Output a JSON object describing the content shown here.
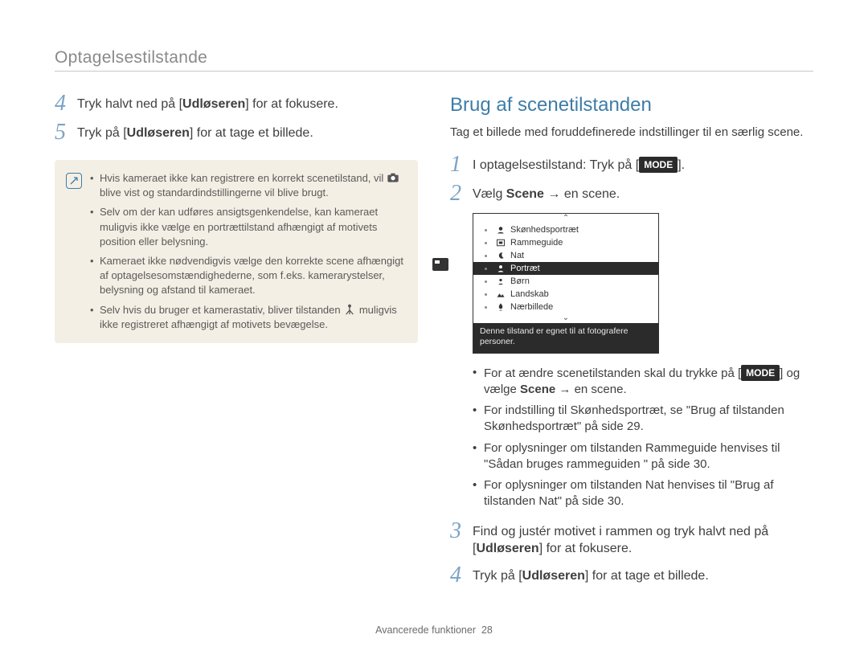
{
  "header": {
    "title": "Optagelsestilstande"
  },
  "left": {
    "step4": {
      "pre": "Tryk halvt ned på [",
      "bold": "Udløseren",
      "post": "] for at fokusere."
    },
    "step5": {
      "pre": "Tryk på [",
      "bold": "Udløseren",
      "post": "] for at tage et billede."
    },
    "notes": [
      {
        "t1": "Hvis kameraet ikke kan registrere en korrekt scenetilstand, vil ",
        "t2": " blive vist og standardindstillingerne vil blive brugt."
      },
      {
        "t1": "Selv om der kan udføres ansigtsgenkendelse, kan kameraet muligvis ikke vælge en portrættilstand afhængigt af motivets position eller belysning."
      },
      {
        "t1": "Kameraet ikke nødvendigvis vælge den korrekte scene afhængigt af optagelsesomstændighederne, som f.eks. kamerarystelser, belysning og afstand til kameraet."
      },
      {
        "t1": "Selv hvis du bruger et kamerastativ, bliver tilstanden ",
        "t2": " muligvis ikke registreret afhængigt af motivets bevægelse."
      }
    ]
  },
  "right": {
    "heading": "Brug af scenetilstanden",
    "intro": "Tag et billede med foruddefinerede indstillinger til en særlig scene.",
    "step1": {
      "pre": "I optagelsestilstand: Tryk på [",
      "mode": "MODE",
      "post": "]."
    },
    "step2": {
      "pre": "Vælg ",
      "bold": "Scene",
      "post": " → en scene."
    },
    "scenes": {
      "items": [
        "Skønhedsportræt",
        "Rammeguide",
        "Nat",
        "Portræt",
        "Børn",
        "Landskab",
        "Nærbillede"
      ],
      "selected_index": 3,
      "footer": "Denne tilstand er egnet til at fotografere personer."
    },
    "bullets": [
      {
        "pre": "For at ændre scenetilstanden skal du trykke på [",
        "mode": "MODE",
        "mid": "] og vælge ",
        "bold": "Scene",
        "post": " → en scene."
      },
      {
        "text": "For indstilling til Skønhedsportræt, se \"Brug af tilstanden Skønhedsportræt\" på side 29."
      },
      {
        "text": "For oplysninger om tilstanden Rammeguide henvises til \"Sådan bruges rammeguiden \" på side 30."
      },
      {
        "text": "For oplysninger om tilstanden Nat henvises til \"Brug af tilstanden Nat\" på side 30."
      }
    ],
    "step3": {
      "pre": "Find og justér motivet i rammen og tryk halvt ned på [",
      "bold": "Udløseren",
      "post": "] for at fokusere."
    },
    "step4": {
      "pre": "Tryk på [",
      "bold": "Udløseren",
      "post": "] for at tage et billede."
    }
  },
  "footer": {
    "label": "Avancerede funktioner",
    "page": "28"
  }
}
